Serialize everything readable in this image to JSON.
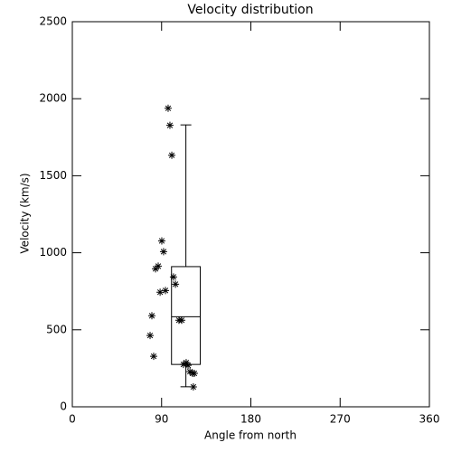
{
  "chart_data": {
    "type": "scatter",
    "title": "Velocity distribution",
    "x_label": "Angle from north",
    "y_label": "Velocity (km/s)",
    "xlim": [
      0,
      360
    ],
    "xticks": [
      0,
      90,
      180,
      270,
      360
    ],
    "ylim": [
      0,
      2500
    ],
    "yticks": [
      0,
      500,
      1000,
      1500,
      2000,
      2500
    ],
    "color": "#000000",
    "x": [
      96.6,
      98.4,
      100.3,
      90.2,
      92,
      86.6,
      83.9,
      88.5,
      93.9,
      102,
      104,
      80.2,
      107.5,
      110.3,
      78.4,
      82,
      112,
      114.8,
      116.7,
      118.6,
      121.2,
      123,
      122
    ],
    "values": [
      1938,
      1827,
      1633,
      1077,
      1007,
      913,
      896,
      744,
      755,
      843,
      796,
      591,
      562,
      562,
      463,
      328,
      275,
      287,
      269,
      228,
      217,
      217,
      129
    ],
    "box": {
      "x": [
        100,
        129
      ],
      "whisker_low": 130,
      "q1": 275,
      "median": 585,
      "q3": 910,
      "whisker_high": 1830
    }
  }
}
